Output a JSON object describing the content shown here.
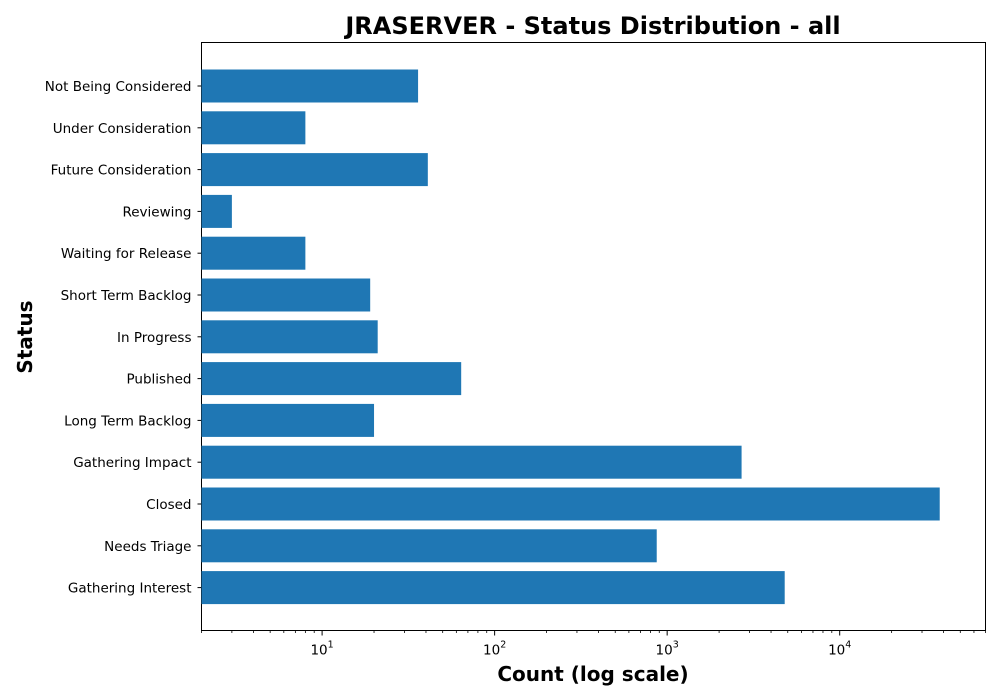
{
  "chart_data": {
    "type": "bar",
    "orientation": "horizontal",
    "title": "JRASERVER - Status Distribution - all",
    "xlabel": "Count (log scale)",
    "ylabel": "Status",
    "x_scale": "log",
    "xlim": [
      2,
      70000
    ],
    "x_ticks": [
      {
        "base": "10",
        "exp": "1",
        "value": 10
      },
      {
        "base": "10",
        "exp": "2",
        "value": 100
      },
      {
        "base": "10",
        "exp": "3",
        "value": 1000
      },
      {
        "base": "10",
        "exp": "4",
        "value": 10000
      }
    ],
    "grid": false,
    "bar_color": "#1f77b4",
    "categories": [
      "Not Being Considered",
      "Under Consideration",
      "Future Consideration",
      "Reviewing",
      "Waiting for Release",
      "Short Term Backlog",
      "In Progress",
      "Published",
      "Long Term Backlog",
      "Gathering Impact",
      "Closed",
      "Needs Triage",
      "Gathering Interest"
    ],
    "values": [
      36,
      8,
      41,
      3,
      8,
      19,
      21,
      64,
      20,
      2700,
      38000,
      870,
      4800
    ]
  }
}
